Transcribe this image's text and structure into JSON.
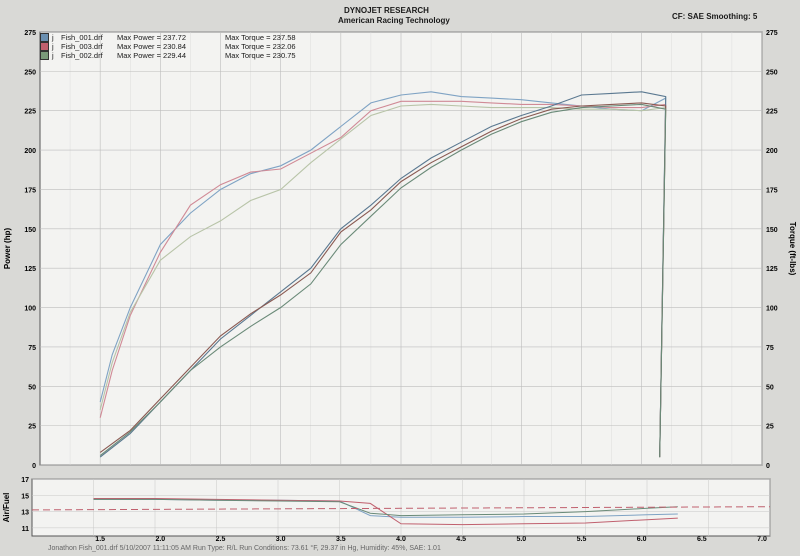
{
  "header": {
    "title": "DYNOJET RESEARCH",
    "subtitle": "American Racing Technology",
    "correction": "CF: SAE  Smoothing: 5"
  },
  "legend": [
    {
      "icon": "j",
      "run": "Fish_001.drf",
      "power_label": "Max Power = 237.72",
      "torque_label": "Max Torque = 237.58",
      "color": "#6a8fb0"
    },
    {
      "icon": "j",
      "run": "Fish_003.drf",
      "power_label": "Max Power = 230.84",
      "torque_label": "Max Torque = 232.06",
      "color": "#c0606e"
    },
    {
      "icon": "j",
      "run": "Fish_002.drf",
      "power_label": "Max Power = 229.44",
      "torque_label": "Max Torque = 230.75",
      "color": "#7a9a7a"
    }
  ],
  "footer": "Jonathon Fish_001.drf  5/10/2007 11:11:05 AM  Run Type: R/L  Run Conditions: 73.61 °F, 29.37 in Hg, Humidity: 45%, SAE: 1.01",
  "chart_data": [
    {
      "type": "line",
      "xlim": [
        1.0,
        7.0
      ],
      "ylim": [
        0,
        275
      ],
      "y2lim": [
        0,
        275
      ],
      "xticks": [
        "1.5",
        "2.0",
        "2.5",
        "3.0",
        "3.5",
        "4.0",
        "4.5",
        "5.0",
        "5.5",
        "6.0",
        "6.5",
        "7.0"
      ],
      "yticks": [
        "0",
        "25",
        "50",
        "75",
        "100",
        "125",
        "150",
        "175",
        "200",
        "225",
        "250",
        "275"
      ],
      "y2ticks": [
        "0",
        "25",
        "50",
        "75",
        "100",
        "125",
        "150",
        "175",
        "200",
        "225",
        "250",
        "275"
      ],
      "ylabel": "Power (hp)",
      "y2label": "Torque (ft-lbs)",
      "grid": true,
      "series": [
        {
          "name": "Fish_001.drf",
          "metric": "power",
          "color": "#7fa3c4",
          "x": [
            1.5,
            1.6,
            1.75,
            2.0,
            2.25,
            2.5,
            2.75,
            3.0,
            3.25,
            3.5,
            3.75,
            4.0,
            4.25,
            4.5,
            4.75,
            5.0,
            5.25,
            5.5,
            5.75,
            6.0,
            6.2
          ],
          "y": [
            40,
            70,
            100,
            140,
            160,
            175,
            185,
            190,
            200,
            215,
            230,
            235,
            237,
            234,
            233,
            232,
            230,
            228,
            226,
            225,
            233
          ]
        },
        {
          "name": "Fish_003.drf",
          "metric": "power",
          "color": "#d08a96",
          "x": [
            1.5,
            1.6,
            1.75,
            2.0,
            2.25,
            2.5,
            2.75,
            3.0,
            3.25,
            3.5,
            3.75,
            4.0,
            4.25,
            4.5,
            4.75,
            5.0,
            5.25,
            5.5,
            5.75,
            6.0,
            6.2
          ],
          "y": [
            30,
            60,
            95,
            135,
            165,
            178,
            186,
            188,
            198,
            208,
            225,
            231,
            231,
            231,
            230,
            229,
            229,
            228,
            227,
            227,
            229
          ]
        },
        {
          "name": "Fish_002.drf",
          "metric": "power",
          "color": "#b8c4a8",
          "x": [
            1.5,
            1.6,
            1.75,
            2.0,
            2.25,
            2.5,
            2.75,
            3.0,
            3.25,
            3.5,
            3.75,
            4.0,
            4.25,
            4.5,
            4.75,
            5.0,
            5.25,
            5.5,
            5.75,
            6.0,
            6.2
          ],
          "y": [
            35,
            65,
            97,
            130,
            145,
            155,
            168,
            175,
            192,
            207,
            222,
            228,
            229,
            228,
            227,
            227,
            227,
            226,
            226,
            225,
            227
          ]
        },
        {
          "name": "Fish_001.drf",
          "metric": "torque",
          "color": "#5a7890",
          "x": [
            1.5,
            1.75,
            2.0,
            2.25,
            2.5,
            2.75,
            3.0,
            3.25,
            3.5,
            3.75,
            4.0,
            4.25,
            4.5,
            4.75,
            5.0,
            5.25,
            5.5,
            5.75,
            6.0,
            6.2
          ],
          "y": [
            5,
            20,
            40,
            60,
            80,
            95,
            110,
            125,
            150,
            165,
            182,
            195,
            205,
            215,
            222,
            228,
            235,
            236,
            237,
            234
          ]
        },
        {
          "name": "Fish_003.drf",
          "metric": "torque",
          "color": "#8a5a52",
          "x": [
            1.5,
            1.75,
            2.0,
            2.25,
            2.5,
            2.75,
            3.0,
            3.25,
            3.5,
            3.75,
            4.0,
            4.25,
            4.5,
            4.75,
            5.0,
            5.25,
            5.5,
            5.75,
            6.0,
            6.2
          ],
          "y": [
            8,
            22,
            42,
            62,
            82,
            96,
            108,
            122,
            148,
            162,
            180,
            192,
            202,
            212,
            220,
            226,
            228,
            229,
            230,
            228
          ]
        },
        {
          "name": "Fish_002.drf",
          "metric": "torque",
          "color": "#6a8a78",
          "x": [
            1.5,
            1.75,
            2.0,
            2.25,
            2.5,
            2.75,
            3.0,
            3.25,
            3.5,
            3.75,
            4.0,
            4.25,
            4.5,
            4.75,
            5.0,
            5.25,
            5.5,
            5.75,
            6.0,
            6.2
          ],
          "y": [
            6,
            21,
            40,
            60,
            75,
            88,
            100,
            115,
            140,
            158,
            176,
            189,
            200,
            210,
            218,
            224,
            227,
            228,
            229,
            226
          ]
        }
      ]
    },
    {
      "type": "line",
      "xlim": [
        1.0,
        7.0
      ],
      "ylim": [
        10,
        17
      ],
      "yticks": [
        "11",
        "13",
        "15",
        "17"
      ],
      "ylabel": "Air/Fuel",
      "grid": true,
      "series": [
        {
          "name": "Fish_001.drf",
          "color": "#7fa3c4",
          "x": [
            1.5,
            2.0,
            2.5,
            3.0,
            3.5,
            3.75,
            4.0,
            4.5,
            5.0,
            5.5,
            6.0,
            6.25
          ],
          "y": [
            14.5,
            14.5,
            14.4,
            14.4,
            14.3,
            12.5,
            12.3,
            12.3,
            12.4,
            12.4,
            12.6,
            12.7
          ]
        },
        {
          "name": "Fish_003.drf",
          "color": "#c0606e",
          "x": [
            1.5,
            2.0,
            2.5,
            3.0,
            3.5,
            3.75,
            4.0,
            4.5,
            5.0,
            5.5,
            6.0,
            6.25
          ],
          "y": [
            14.6,
            14.6,
            14.5,
            14.4,
            14.3,
            14.0,
            11.5,
            11.4,
            11.5,
            11.6,
            12.0,
            12.2
          ]
        },
        {
          "name": "Fish_002.drf",
          "color": "#6a8a78",
          "x": [
            1.5,
            2.0,
            2.5,
            3.0,
            3.5,
            3.75,
            4.0,
            4.5,
            5.0,
            5.5,
            6.0,
            6.25
          ],
          "y": [
            14.5,
            14.5,
            14.4,
            14.3,
            14.2,
            12.8,
            12.5,
            12.6,
            12.7,
            13.0,
            13.4,
            13.6
          ]
        },
        {
          "name": "reference",
          "color": "#c0606e",
          "dashed": true,
          "x": [
            1.0,
            7.0
          ],
          "y": [
            13.2,
            13.6
          ]
        }
      ]
    }
  ]
}
